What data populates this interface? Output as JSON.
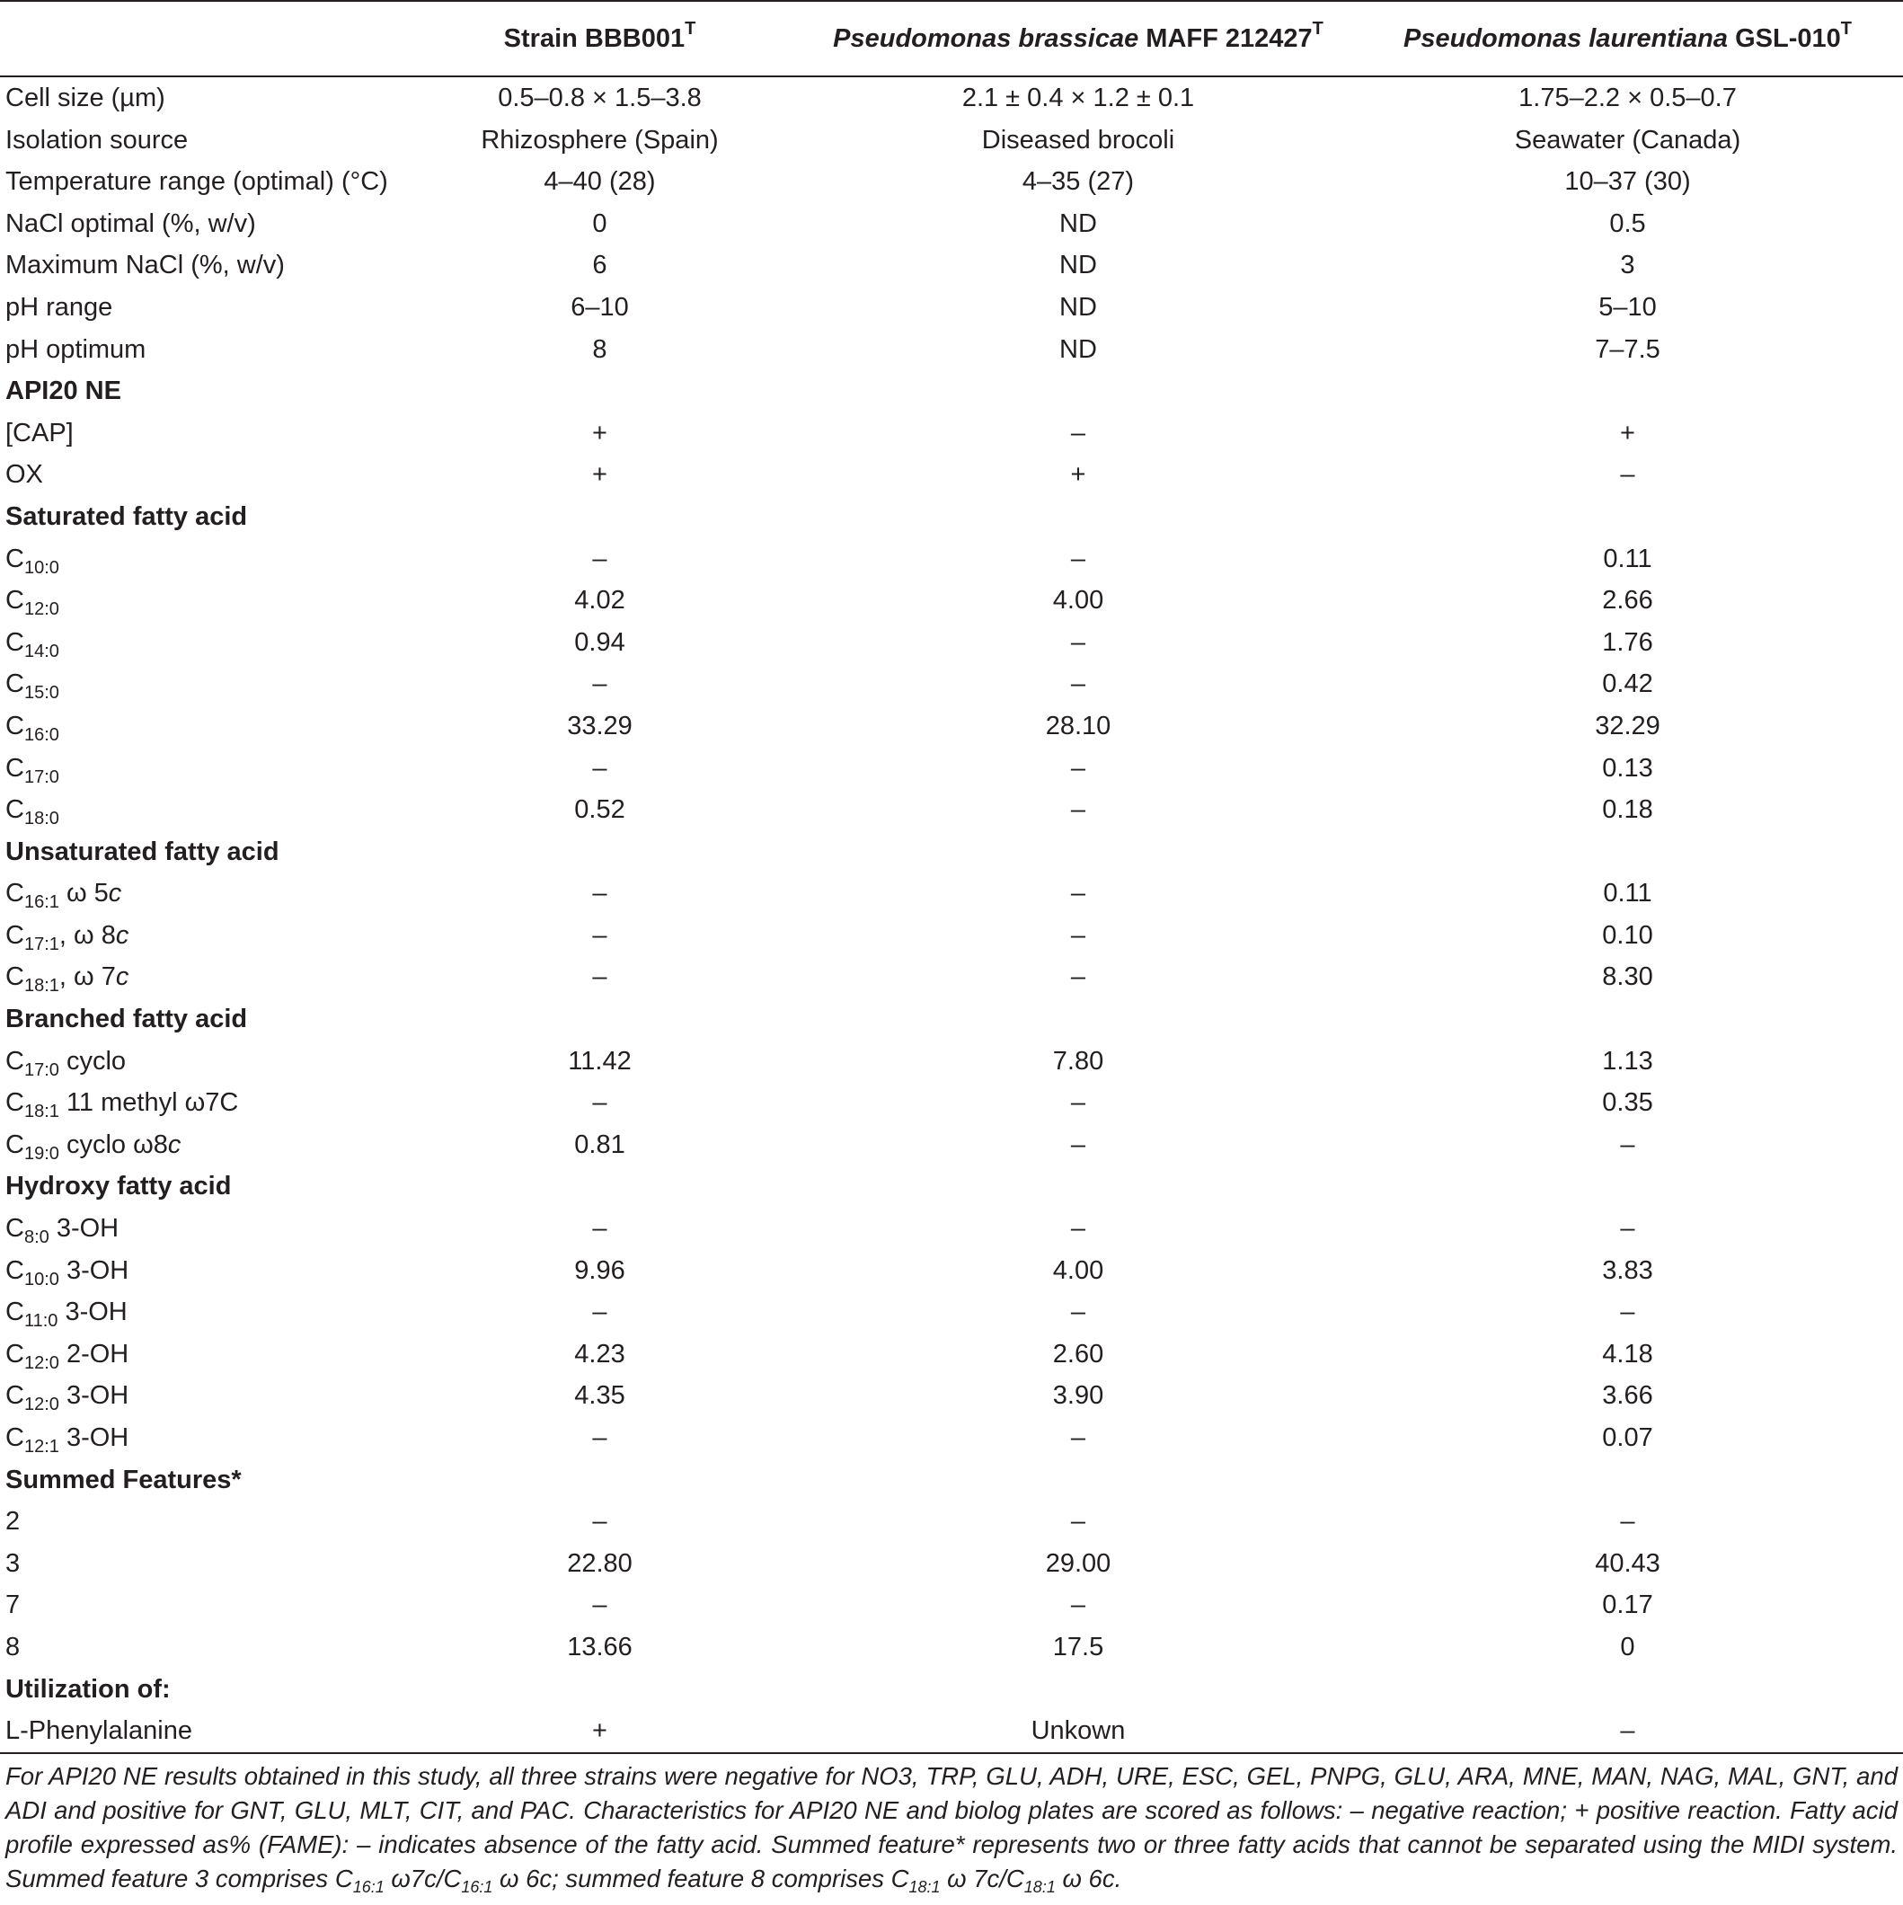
{
  "header": {
    "col1": "Strain BBB001",
    "col1_sup": "T",
    "col2_italic": "Pseudomonas brassicae",
    "col2_rest": " MAFF 212427",
    "col2_sup": "T",
    "col3_italic": "Pseudomonas laurentiana",
    "col3_rest": " GSL-010",
    "col3_sup": "T"
  },
  "rows": {
    "r0": {
      "label": "Cell size (µm)",
      "v1": "0.5–0.8 × 1.5–3.8",
      "v2": "2.1 ± 0.4 × 1.2 ± 0.1",
      "v3": "1.75–2.2 × 0.5–0.7"
    },
    "r1": {
      "label": "Isolation source",
      "v1": "Rhizosphere (Spain)",
      "v2": "Diseased brocoli",
      "v3": "Seawater (Canada)"
    },
    "r2": {
      "label": "Temperature range (optimal) (°C)",
      "v1": "4–40 (28)",
      "v2": "4–35 (27)",
      "v3": "10–37 (30)"
    },
    "r3": {
      "label": "NaCl optimal (%, w/v)",
      "v1": "0",
      "v2": "ND",
      "v3": "0.5"
    },
    "r4": {
      "label": "Maximum NaCl (%, w/v)",
      "v1": "6",
      "v2": "ND",
      "v3": "3"
    },
    "r5": {
      "label": "pH range",
      "v1": "6–10",
      "v2": "ND",
      "v3": "5–10"
    },
    "r6": {
      "label": "pH optimum",
      "v1": "8",
      "v2": "ND",
      "v3": "7–7.5"
    },
    "s1": {
      "label": "API20 NE"
    },
    "r7": {
      "label": "[CAP]",
      "v1": "+",
      "v2": "–",
      "v3": "+"
    },
    "r8": {
      "label": "OX",
      "v1": "+",
      "v2": "+",
      "v3": "–"
    },
    "s2": {
      "label": "Saturated fatty acid"
    },
    "r9": {
      "c": "C",
      "sub": "10:0",
      "rest": "",
      "v1": "–",
      "v2": "–",
      "v3": "0.11"
    },
    "r10": {
      "c": "C",
      "sub": "12:0",
      "rest": "",
      "v1": "4.02",
      "v2": "4.00",
      "v3": "2.66"
    },
    "r11": {
      "c": "C",
      "sub": "14:0",
      "rest": "",
      "v1": "0.94",
      "v2": "–",
      "v3": "1.76"
    },
    "r12": {
      "c": "C",
      "sub": "15:0",
      "rest": "",
      "v1": "–",
      "v2": "–",
      "v3": "0.42"
    },
    "r13": {
      "c": "C",
      "sub": "16:0",
      "rest": "",
      "v1": "33.29",
      "v2": "28.10",
      "v3": "32.29"
    },
    "r14": {
      "c": "C",
      "sub": "17:0",
      "rest": "",
      "v1": "–",
      "v2": "–",
      "v3": "0.13"
    },
    "r15": {
      "c": "C",
      "sub": "18:0",
      "rest": "",
      "v1": "0.52",
      "v2": "–",
      "v3": "0.18"
    },
    "s3": {
      "label": "Unsaturated fatty acid"
    },
    "r16": {
      "c": "C",
      "sub": "16:1",
      "rest": " ω 5",
      "it": "c",
      "v1": "–",
      "v2": "–",
      "v3": "0.11"
    },
    "r17": {
      "c": "C",
      "sub": "17:1",
      "rest": ", ω 8",
      "it": "c",
      "v1": "–",
      "v2": "–",
      "v3": "0.10"
    },
    "r18": {
      "c": "C",
      "sub": "18:1",
      "rest": ", ω 7",
      "it": "c",
      "v1": "–",
      "v2": "–",
      "v3": "8.30"
    },
    "s4": {
      "label": "Branched fatty acid"
    },
    "r19": {
      "c": "C",
      "sub": "17:0",
      "rest": " cyclo",
      "v1": "11.42",
      "v2": "7.80",
      "v3": "1.13"
    },
    "r20": {
      "c": "C",
      "sub": "18:1",
      "rest": " 11 methyl ω7C",
      "v1": "–",
      "v2": "–",
      "v3": "0.35"
    },
    "r21": {
      "c": "C",
      "sub": "19:0",
      "rest": " cyclo ω8",
      "it": "c",
      "v1": "0.81",
      "v2": "–",
      "v3": "–"
    },
    "s5": {
      "label": "Hydroxy fatty acid"
    },
    "r22": {
      "c": "C",
      "sub": "8:0",
      "rest": " 3-OH",
      "v1": "–",
      "v2": "–",
      "v3": "–"
    },
    "r23": {
      "c": "C",
      "sub": "10:0",
      "rest": " 3-OH",
      "v1": "9.96",
      "v2": "4.00",
      "v3": "3.83"
    },
    "r24": {
      "c": "C",
      "sub": "11:0",
      "rest": " 3-OH",
      "v1": "–",
      "v2": "–",
      "v3": "–"
    },
    "r25": {
      "c": "C",
      "sub": "12:0",
      "rest": " 2-OH",
      "v1": "4.23",
      "v2": "2.60",
      "v3": "4.18"
    },
    "r26": {
      "c": "C",
      "sub": "12:0",
      "rest": " 3-OH",
      "v1": "4.35",
      "v2": "3.90",
      "v3": "3.66"
    },
    "r27": {
      "c": "C",
      "sub": "12:1",
      "rest": " 3-OH",
      "v1": "–",
      "v2": "–",
      "v3": "0.07"
    },
    "s6": {
      "label": "Summed Features*"
    },
    "r28": {
      "label": "2",
      "v1": "–",
      "v2": "–",
      "v3": "–"
    },
    "r29": {
      "label": "3",
      "v1": "22.80",
      "v2": "29.00",
      "v3": "40.43"
    },
    "r30": {
      "label": "7",
      "v1": "–",
      "v2": "–",
      "v3": "0.17"
    },
    "r31": {
      "label": "8",
      "v1": "13.66",
      "v2": "17.5",
      "v3": "0"
    },
    "s7": {
      "label": "Utilization of:"
    },
    "r32": {
      "label": "L-Phenylalanine",
      "v1": "+",
      "v2": "Unkown",
      "v3": "–"
    }
  },
  "footnote": {
    "p1": "For API20 NE results obtained in this study, all three strains were negative for NO3, TRP, GLU, ADH, URE, ESC, GEL, PNPG, GLU, ARA, MNE, MAN, NAG, MAL, GNT, and ADI and positive for GNT, GLU, MLT, CIT, and PAC. Characteristics for API20 NE and biolog plates are scored as follows: – negative reaction; + positive reaction. Fatty acid profile expressed as% (FAME): – indicates absence of the fatty acid. Summed feature* represents two or three fatty acids that cannot be separated using the MIDI system. Summed feature 3 comprises C",
    "s1": "16:1",
    "p2": " ω7c/C",
    "s2": "16:1",
    "p3": " ω 6c; summed feature 8 comprises C",
    "s3": "18:1",
    "p4": " ω 7c/C",
    "s4": "18:1",
    "p5": " ω 6c."
  }
}
